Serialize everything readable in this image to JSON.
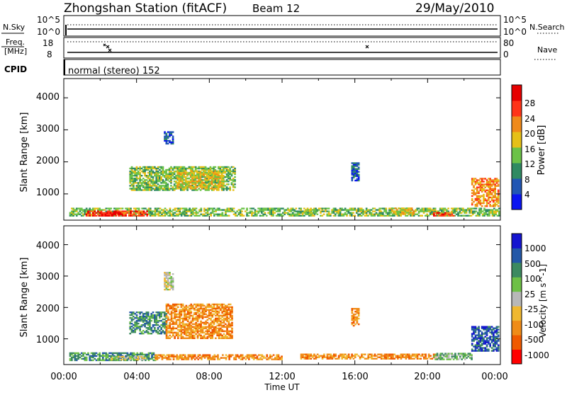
{
  "header": {
    "title": "Zhongshan Station (fitACF)",
    "beam": "Beam 12",
    "date": "29/May/2010"
  },
  "mini_panels": {
    "nsky": {
      "label": "N.Sky",
      "ticks": [
        "10^5",
        "10^0"
      ]
    },
    "nsearch": {
      "label": "N.Search",
      "ticks": [
        "10^5",
        "10^0"
      ]
    },
    "freq": {
      "label_line1": "Freq.",
      "label_line2": "[MHz]",
      "ticks": [
        "18",
        "8"
      ]
    },
    "nave": {
      "label": "Nave",
      "ticks": [
        "80",
        "0"
      ]
    },
    "cpid": {
      "label": "CPID",
      "mode": "normal (stereo) 152"
    }
  },
  "chart_data": [
    {
      "type": "heatmap",
      "title": "",
      "xlabel": "Time UT",
      "ylabel": "Slant Range [km]",
      "x_ticks": [
        "00:00",
        "04:00",
        "08:00",
        "12:00",
        "16:00",
        "20:00",
        "00:00"
      ],
      "y_ticks": [
        "1000",
        "2000",
        "3000",
        "4000"
      ],
      "xlim": [
        0,
        24
      ],
      "ylim": [
        180,
        4600
      ],
      "colorbar": {
        "label": "Power [dB]",
        "ticks": [
          "28",
          "24",
          "20",
          "16",
          "12",
          "8",
          "4"
        ],
        "colors": [
          "#0a14f0",
          "#2156b4",
          "#2f8a62",
          "#6cc248",
          "#e6c018",
          "#f08a1a",
          "#ff3418",
          "#e60000"
        ]
      },
      "regions": [
        {
          "t": [
            0.3,
            23.9
          ],
          "r": [
            300,
            560
          ],
          "level": 3
        },
        {
          "t": [
            1.2,
            4.6
          ],
          "r": [
            300,
            470
          ],
          "level": 6
        },
        {
          "t": [
            1.8,
            3.2
          ],
          "r": [
            300,
            400
          ],
          "level": 7
        },
        {
          "t": [
            20.3,
            21.4
          ],
          "r": [
            300,
            420
          ],
          "level": 6
        },
        {
          "t": [
            3.6,
            9.4
          ],
          "r": [
            1100,
            1850
          ],
          "level": 3
        },
        {
          "t": [
            6.2,
            8.8
          ],
          "r": [
            1150,
            1700
          ],
          "level": 4
        },
        {
          "t": [
            5.5,
            6.0
          ],
          "r": [
            2550,
            2950
          ],
          "level": 1
        },
        {
          "t": [
            15.8,
            16.2
          ],
          "r": [
            1400,
            1950
          ],
          "level": 1
        },
        {
          "t": [
            22.4,
            23.9
          ],
          "r": [
            600,
            1500
          ],
          "level": 5
        },
        {
          "t": [
            13.2,
            13.8
          ],
          "r": [
            350,
            500
          ],
          "level": 3
        },
        {
          "t": [
            18.0,
            19.2
          ],
          "r": [
            350,
            560
          ],
          "level": 4
        }
      ]
    },
    {
      "type": "heatmap",
      "title": "",
      "xlabel": "Time UT",
      "ylabel": "Slant Range [km]",
      "x_ticks": [
        "00:00",
        "04:00",
        "08:00",
        "12:00",
        "16:00",
        "20:00",
        "00:00"
      ],
      "y_ticks": [
        "1000",
        "2000",
        "3000",
        "4000"
      ],
      "xlim": [
        0,
        24
      ],
      "ylim": [
        180,
        4600
      ],
      "colorbar": {
        "label": "Velocity [m s^-1]",
        "ticks": [
          "1000",
          "500",
          "100",
          "25",
          "-25",
          "-100",
          "-500",
          "-1000"
        ],
        "colors": [
          "#ff0000",
          "#f05a00",
          "#f08c18",
          "#f0b830",
          "#b8b8b8",
          "#6ec046",
          "#3c8a60",
          "#2358a8",
          "#1414d0"
        ]
      },
      "regions": [
        {
          "t": [
            0.3,
            5.0
          ],
          "r": [
            300,
            560
          ],
          "level": 6
        },
        {
          "t": [
            2.6,
            4.4
          ],
          "r": [
            320,
            440
          ],
          "level": 4
        },
        {
          "t": [
            5.0,
            12.0
          ],
          "r": [
            330,
            500
          ],
          "level": 2
        },
        {
          "t": [
            3.6,
            5.6
          ],
          "r": [
            1150,
            1850
          ],
          "level": 6
        },
        {
          "t": [
            5.6,
            9.2
          ],
          "r": [
            1000,
            2100
          ],
          "level": 2
        },
        {
          "t": [
            5.5,
            6.0
          ],
          "r": [
            2550,
            3100
          ],
          "level": 4
        },
        {
          "t": [
            15.8,
            16.2
          ],
          "r": [
            1400,
            1950
          ],
          "level": 2
        },
        {
          "t": [
            13.0,
            20.5
          ],
          "r": [
            350,
            520
          ],
          "level": 2
        },
        {
          "t": [
            22.4,
            23.9
          ],
          "r": [
            600,
            1400
          ],
          "level": 7
        },
        {
          "t": [
            20.3,
            22.4
          ],
          "r": [
            330,
            520
          ],
          "level": 5
        }
      ]
    }
  ]
}
